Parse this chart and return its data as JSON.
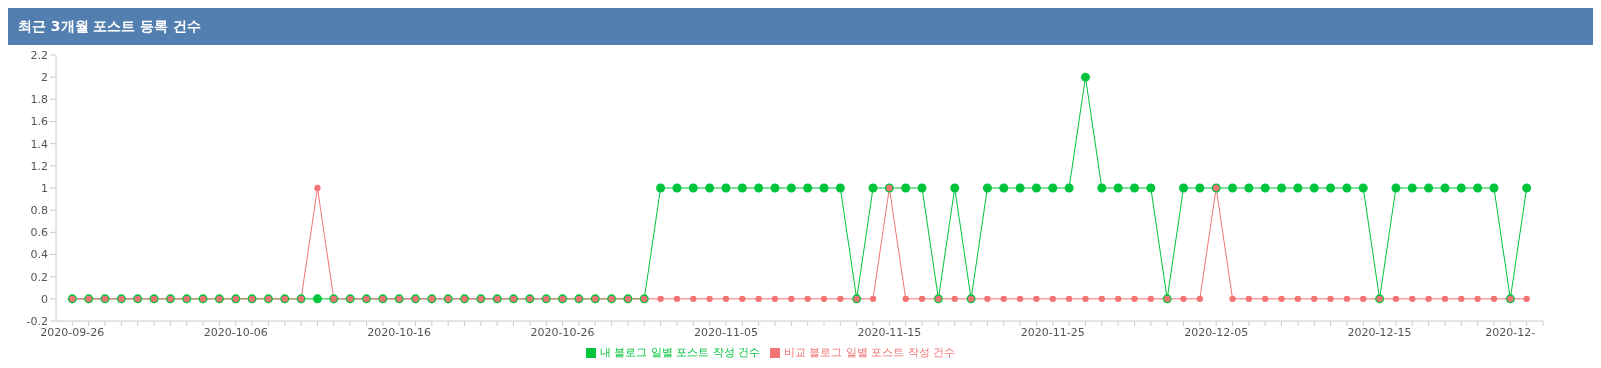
{
  "chart_data": {
    "type": "line",
    "title": "최근 3개월 포스트 등록 건수",
    "x": [
      "2020-09-26",
      "2020-09-27",
      "2020-09-28",
      "2020-09-29",
      "2020-09-30",
      "2020-10-01",
      "2020-10-02",
      "2020-10-03",
      "2020-10-04",
      "2020-10-05",
      "2020-10-06",
      "2020-10-07",
      "2020-10-08",
      "2020-10-09",
      "2020-10-10",
      "2020-10-11",
      "2020-10-12",
      "2020-10-13",
      "2020-10-14",
      "2020-10-15",
      "2020-10-16",
      "2020-10-17",
      "2020-10-18",
      "2020-10-19",
      "2020-10-20",
      "2020-10-21",
      "2020-10-22",
      "2020-10-23",
      "2020-10-24",
      "2020-10-25",
      "2020-10-26",
      "2020-10-27",
      "2020-10-28",
      "2020-10-29",
      "2020-10-30",
      "2020-10-31",
      "2020-11-01",
      "2020-11-02",
      "2020-11-03",
      "2020-11-04",
      "2020-11-05",
      "2020-11-06",
      "2020-11-07",
      "2020-11-08",
      "2020-11-09",
      "2020-11-10",
      "2020-11-11",
      "2020-11-12",
      "2020-11-13",
      "2020-11-14",
      "2020-11-15",
      "2020-11-16",
      "2020-11-17",
      "2020-11-18",
      "2020-11-19",
      "2020-11-20",
      "2020-11-21",
      "2020-11-22",
      "2020-11-23",
      "2020-11-24",
      "2020-11-25",
      "2020-11-26",
      "2020-11-27",
      "2020-11-28",
      "2020-11-29",
      "2020-11-30",
      "2020-12-01",
      "2020-12-02",
      "2020-12-03",
      "2020-12-04",
      "2020-12-05",
      "2020-12-06",
      "2020-12-07",
      "2020-12-08",
      "2020-12-09",
      "2020-12-10",
      "2020-12-11",
      "2020-12-12",
      "2020-12-13",
      "2020-12-14",
      "2020-12-15",
      "2020-12-16",
      "2020-12-17",
      "2020-12-18",
      "2020-12-19",
      "2020-12-20",
      "2020-12-21",
      "2020-12-22",
      "2020-12-23",
      "2020-12-24"
    ],
    "series": [
      {
        "name": "내 블로그 일별 포스트 작성 건수",
        "color": "#00c43c",
        "values": [
          0,
          0,
          0,
          0,
          0,
          0,
          0,
          0,
          0,
          0,
          0,
          0,
          0,
          0,
          0,
          0,
          0,
          0,
          0,
          0,
          0,
          0,
          0,
          0,
          0,
          0,
          0,
          0,
          0,
          0,
          0,
          0,
          0,
          0,
          0,
          0,
          1,
          1,
          1,
          1,
          1,
          1,
          1,
          1,
          1,
          1,
          1,
          1,
          0,
          1,
          1,
          1,
          1,
          0,
          1,
          0,
          1,
          1,
          1,
          1,
          1,
          1,
          2,
          1,
          1,
          1,
          1,
          0,
          1,
          1,
          1,
          1,
          1,
          1,
          1,
          1,
          1,
          1,
          1,
          1,
          0,
          1,
          1,
          1,
          1,
          1,
          1,
          1,
          0,
          1
        ]
      },
      {
        "name": "비교 블로그 일별 포스트 작성 건수",
        "color": "#f27474",
        "values": [
          0,
          0,
          0,
          0,
          0,
          0,
          0,
          0,
          0,
          0,
          0,
          0,
          0,
          0,
          0,
          1,
          0,
          0,
          0,
          0,
          0,
          0,
          0,
          0,
          0,
          0,
          0,
          0,
          0,
          0,
          0,
          0,
          0,
          0,
          0,
          0,
          0,
          0,
          0,
          0,
          0,
          0,
          0,
          0,
          0,
          0,
          0,
          0,
          0,
          0,
          1,
          0,
          0,
          0,
          0,
          0,
          0,
          0,
          0,
          0,
          0,
          0,
          0,
          0,
          0,
          0,
          0,
          0,
          0,
          0,
          1,
          0,
          0,
          0,
          0,
          0,
          0,
          0,
          0,
          0,
          0,
          0,
          0,
          0,
          0,
          0,
          0,
          0,
          0,
          0
        ]
      }
    ],
    "xlim": [
      "2020-09-25",
      "2020-12-25"
    ],
    "xticks": [
      "2020-09-26",
      {
        "value": "2020-09-27",
        "label": null
      },
      {
        "value": "2020-09-28",
        "label": null
      },
      {
        "value": "2020-09-29",
        "label": null
      },
      {
        "value": "2020-09-30",
        "label": null
      },
      {
        "value": "2020-10-01",
        "label": null
      },
      {
        "value": "2020-10-02",
        "label": null
      },
      {
        "value": "2020-10-03",
        "label": null
      },
      {
        "value": "2020-10-04",
        "label": null
      },
      {
        "value": "2020-10-05",
        "label": null
      },
      "2020-10-06",
      {
        "value": "2020-10-07",
        "label": null
      },
      {
        "value": "2020-10-08",
        "label": null
      },
      {
        "value": "2020-10-09",
        "label": null
      },
      {
        "value": "2020-10-10",
        "label": null
      },
      {
        "value": "2020-10-11",
        "label": null
      },
      {
        "value": "2020-10-12",
        "label": null
      },
      {
        "value": "2020-10-13",
        "label": null
      },
      {
        "value": "2020-10-14",
        "label": null
      },
      {
        "value": "2020-10-15",
        "label": null
      },
      "2020-10-16",
      {
        "value": "2020-10-17",
        "label": null
      },
      {
        "value": "2020-10-18",
        "label": null
      },
      {
        "value": "2020-10-19",
        "label": null
      },
      {
        "value": "2020-10-20",
        "label": null
      },
      {
        "value": "2020-10-21",
        "label": null
      },
      {
        "value": "2020-10-22",
        "label": null
      },
      {
        "value": "2020-10-23",
        "label": null
      },
      {
        "value": "2020-10-24",
        "label": null
      },
      {
        "value": "2020-10-25",
        "label": null
      },
      "2020-10-26",
      {
        "value": "2020-10-27",
        "label": null
      },
      {
        "value": "2020-10-28",
        "label": null
      },
      {
        "value": "2020-10-29",
        "label": null
      },
      {
        "value": "2020-10-30",
        "label": null
      },
      {
        "value": "2020-10-31",
        "label": null
      },
      {
        "value": "2020-11-01",
        "label": null
      },
      {
        "value": "2020-11-02",
        "label": null
      },
      {
        "value": "2020-11-03",
        "label": null
      },
      {
        "value": "2020-11-04",
        "label": null
      },
      "2020-11-05",
      {
        "value": "2020-11-06",
        "label": null
      },
      {
        "value": "2020-11-07",
        "label": null
      },
      {
        "value": "2020-11-08",
        "label": null
      },
      {
        "value": "2020-11-09",
        "label": null
      },
      {
        "value": "2020-11-10",
        "label": null
      },
      {
        "value": "2020-11-11",
        "label": null
      },
      {
        "value": "2020-11-12",
        "label": null
      },
      {
        "value": "2020-11-13",
        "label": null
      },
      {
        "value": "2020-11-14",
        "label": null
      },
      "2020-11-15",
      {
        "value": "2020-11-16",
        "label": null
      },
      {
        "value": "2020-11-17",
        "label": null
      },
      {
        "value": "2020-11-18",
        "label": null
      },
      {
        "value": "2020-11-19",
        "label": null
      },
      {
        "value": "2020-11-20",
        "label": null
      },
      {
        "value": "2020-11-21",
        "label": null
      },
      {
        "value": "2020-11-22",
        "label": null
      },
      {
        "value": "2020-11-23",
        "label": null
      },
      {
        "value": "2020-11-24",
        "label": null
      },
      "2020-11-25",
      {
        "value": "2020-11-26",
        "label": null
      },
      {
        "value": "2020-11-27",
        "label": null
      },
      {
        "value": "2020-11-28",
        "label": null
      },
      {
        "value": "2020-11-29",
        "label": null
      },
      {
        "value": "2020-11-30",
        "label": null
      },
      {
        "value": "2020-12-01",
        "label": null
      },
      {
        "value": "2020-12-02",
        "label": null
      },
      {
        "value": "2020-12-03",
        "label": null
      },
      {
        "value": "2020-12-04",
        "label": null
      },
      "2020-12-05",
      {
        "value": "2020-12-06",
        "label": null
      },
      {
        "value": "2020-12-07",
        "label": null
      },
      {
        "value": "2020-12-08",
        "label": null
      },
      {
        "value": "2020-12-09",
        "label": null
      },
      {
        "value": "2020-12-10",
        "label": null
      },
      {
        "value": "2020-12-11",
        "label": null
      },
      {
        "value": "2020-12-12",
        "label": null
      },
      {
        "value": "2020-12-13",
        "label": null
      },
      {
        "value": "2020-12-14",
        "label": null
      },
      "2020-12-15",
      {
        "value": "2020-12-16",
        "label": null
      },
      {
        "value": "2020-12-17",
        "label": null
      },
      {
        "value": "2020-12-18",
        "label": null
      },
      {
        "value": "2020-12-19",
        "label": null
      },
      {
        "value": "2020-12-20",
        "label": null
      },
      {
        "value": "2020-12-21",
        "label": null
      },
      {
        "value": "2020-12-22",
        "label": null
      },
      {
        "value": "2020-12-23",
        "label": "2020-12-"
      },
      {
        "value": "2020-12-24",
        "label": null
      },
      {
        "value": "2020-12-25",
        "label": null
      }
    ],
    "ylim": [
      -0.2,
      2.2
    ],
    "yticks": [
      -0.2,
      0,
      0.2,
      0.4,
      0.6,
      0.8,
      1,
      1.2,
      1.4,
      1.6,
      1.8,
      2,
      2.2
    ],
    "grid": false,
    "legend": "bottom",
    "marker": "circle",
    "line_style": "solid"
  }
}
